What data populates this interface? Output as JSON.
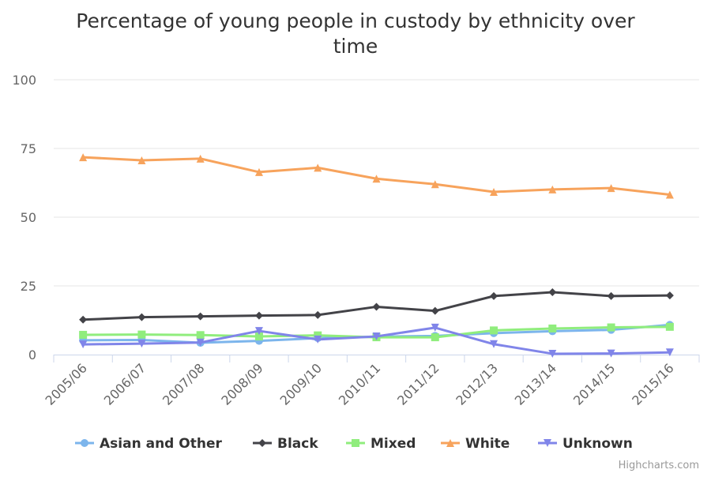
{
  "chart_data": {
    "type": "line",
    "title": "Percentage of young people in custody by ethnicity over time",
    "categories": [
      "2005/06",
      "2006/07",
      "2007/08",
      "2008/09",
      "2009/10",
      "2010/11",
      "2011/12",
      "2012/13",
      "2013/14",
      "2014/15",
      "2015/16"
    ],
    "ylim": [
      0,
      100
    ],
    "yticks": [
      0,
      25,
      50,
      75,
      100
    ],
    "grid": true,
    "legend_position": "bottom",
    "series": [
      {
        "name": "Asian and Other",
        "color": "#7cb5ec",
        "marker": "circle",
        "values": [
          5.2,
          5.3,
          4.3,
          5.0,
          6.0,
          6.5,
          6.8,
          7.8,
          8.5,
          9.0,
          10.8
        ]
      },
      {
        "name": "Black",
        "color": "#434348",
        "marker": "diamond",
        "values": [
          12.7,
          13.6,
          13.9,
          14.2,
          14.4,
          17.4,
          15.9,
          21.3,
          22.7,
          21.3,
          21.5
        ]
      },
      {
        "name": "Mixed",
        "color": "#90ed7d",
        "marker": "square",
        "values": [
          7.2,
          7.3,
          7.1,
          6.6,
          7.0,
          6.3,
          6.3,
          8.8,
          9.5,
          9.9,
          10.1
        ]
      },
      {
        "name": "White",
        "color": "#f7a35c",
        "marker": "triangle",
        "values": [
          71.8,
          70.7,
          71.3,
          66.4,
          68.0,
          64.0,
          62.0,
          59.2,
          60.1,
          60.6,
          58.2
        ]
      },
      {
        "name": "Unknown",
        "color": "#8085e9",
        "marker": "triangle-down",
        "values": [
          3.7,
          4.0,
          4.4,
          8.6,
          5.5,
          6.6,
          9.8,
          3.8,
          0.3,
          0.4,
          0.8
        ]
      }
    ]
  },
  "credits": "Highcharts.com"
}
